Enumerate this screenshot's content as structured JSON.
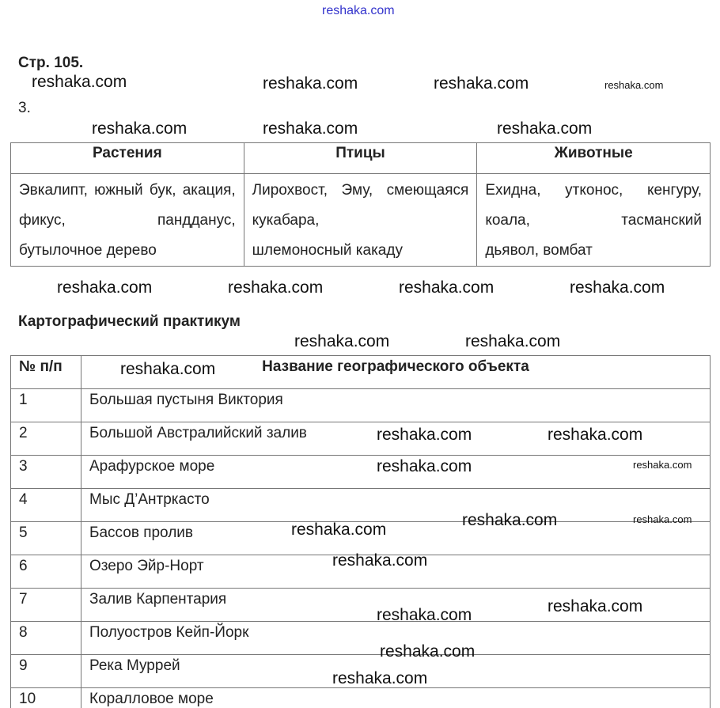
{
  "header_watermark": "reshaka.com",
  "page_ref": "Стр. 105.",
  "task_number": "3.",
  "table1": {
    "headers": [
      "Растения",
      "Птицы",
      "Животные"
    ],
    "cells": [
      [
        "Эвкалипт, южный бук, акация, фикус, пандданус,",
        "бутылочное дерево"
      ],
      [
        "Лирохвост, Эму, смеющаяся кукабара,",
        "шлемоносный какаду"
      ],
      [
        "Ехидна, утконос, кенгуру, коала, тасманский",
        "дьявол, вомбат"
      ]
    ]
  },
  "section_title": "Картографический практикум",
  "table2": {
    "headers": [
      "№ п/п",
      "Название географического объекта"
    ],
    "rows": [
      [
        "1",
        "Большая пустыня Виктория"
      ],
      [
        "2",
        "Большой Австралийский залив"
      ],
      [
        "3",
        "Арафурское море"
      ],
      [
        "4",
        "Мыс Д’Антркасто"
      ],
      [
        "5",
        "Бассов пролив"
      ],
      [
        "6",
        "Озеро Эйр-Норт"
      ],
      [
        "7",
        "Залив Карпентария"
      ],
      [
        "8",
        "Полуостров Кейп-Йорк"
      ],
      [
        "9",
        "Река Муррей"
      ],
      [
        "10",
        "Коралловое море"
      ]
    ]
  },
  "watermark": "reshaka.com"
}
